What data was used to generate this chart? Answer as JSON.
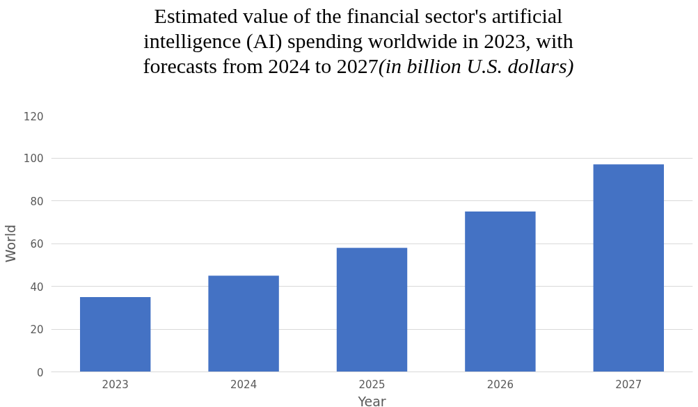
{
  "chart_data": {
    "type": "bar",
    "title": "Estimated value of the financial sector's artificial intelligence (AI) spending worldwide in 2023, with forecasts from 2024 to 2027",
    "subtitle": "(in billion U.S. dollars)",
    "xlabel": "Year",
    "ylabel": "World",
    "categories": [
      "2023",
      "2024",
      "2025",
      "2026",
      "2027"
    ],
    "values": [
      35,
      45,
      58,
      75,
      97
    ],
    "color": "#4472c4",
    "ylim": [
      0,
      120
    ],
    "yticks": [
      0,
      20,
      40,
      60,
      80,
      100,
      120
    ],
    "grid": "y"
  }
}
